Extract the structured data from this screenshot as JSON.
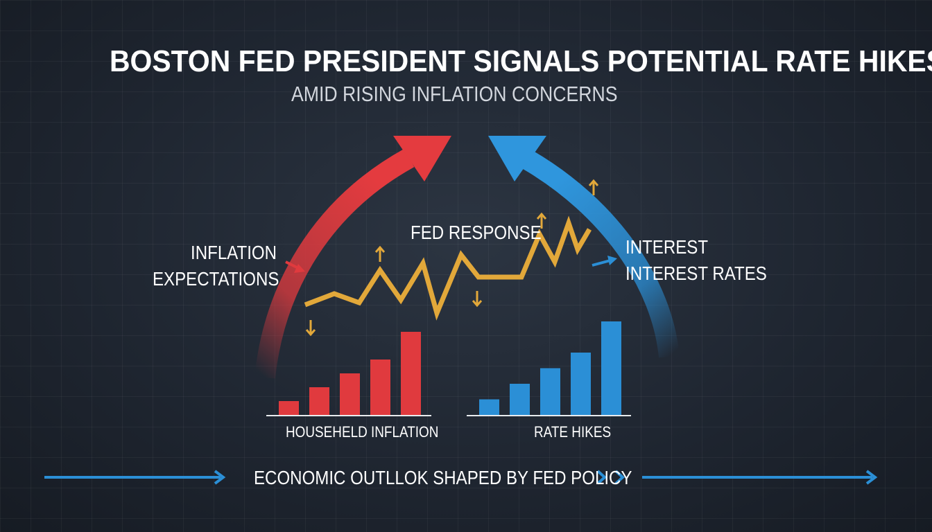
{
  "title": "BOSTON FED PRESIDENT SIGNALS POTENTIAL RATE HIKES",
  "subtitle": "AMID RISING INFLATION CONCERNS",
  "labels": {
    "inflation_line1": "INFLATION",
    "inflation_line2": "EXPECTATIONS",
    "fed_response": "FED RESPONSE",
    "interest_line1": "INTEREST",
    "interest_line2": "INTEREST RATES"
  },
  "charts": {
    "household": {
      "label": "HOUSEHELD INFLATION",
      "values": [
        1,
        2,
        3,
        4,
        6
      ],
      "color": "#e03a3e"
    },
    "rates": {
      "label": "RATE HIKES",
      "values": [
        1,
        2,
        3,
        4,
        6
      ],
      "color": "#2b8fd6"
    }
  },
  "footer": "ECONOMIC OUTLLOK SHAPED BY FED POLICY",
  "colors": {
    "red": "#e03a3e",
    "blue": "#2b8fd6",
    "gold": "#e2a83a",
    "background": "#1f2631"
  },
  "icons": [
    "red-curved-arrow-icon",
    "blue-curved-arrow-icon",
    "up-arrow-icon",
    "down-arrow-icon",
    "double-chevron-icon"
  ]
}
